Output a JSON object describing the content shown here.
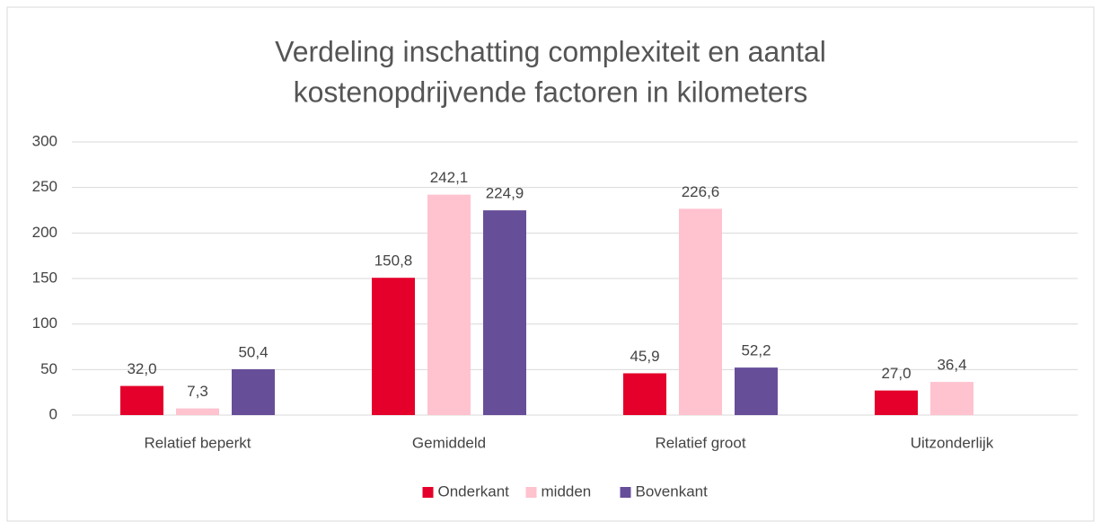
{
  "chart_data": {
    "type": "bar",
    "title": [
      "Verdeling inschatting complexiteit en aantal",
      "kostenopdrijvende factoren in kilometers"
    ],
    "categories": [
      "Relatief beperkt",
      "Gemiddeld",
      "Relatief groot",
      "Uitzonderlijk"
    ],
    "series": [
      {
        "name": "Onderkant",
        "color": "#e4002b",
        "values": [
          32.0,
          150.8,
          45.9,
          27.0
        ],
        "value_labels": [
          "32,0",
          "150,8",
          "45,9",
          "27,0"
        ]
      },
      {
        "name": "midden",
        "color": "#ffc2cf",
        "values": [
          7.3,
          242.1,
          226.6,
          36.4
        ],
        "value_labels": [
          "7,3",
          "242,1",
          "226,6",
          "36,4"
        ]
      },
      {
        "name": "Bovenkant",
        "color": "#674e99",
        "values": [
          50.4,
          224.9,
          52.2,
          null
        ],
        "value_labels": [
          "50,4",
          "224,9",
          "52,2",
          null
        ]
      }
    ],
    "ylim": [
      0,
      300
    ],
    "yticks": [
      0,
      50,
      100,
      150,
      200,
      250,
      300
    ],
    "grid": true,
    "legend": "bottom"
  }
}
